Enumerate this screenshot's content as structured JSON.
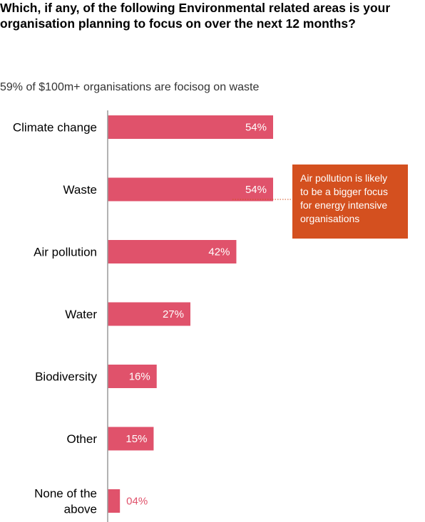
{
  "chart_data": {
    "type": "bar",
    "orientation": "horizontal",
    "title": "Which, if any, of the following Environmental related areas is your organisation planning to focus on over the next 12 months?",
    "subtitle": "59% of $100m+ organisations are focisog on waste",
    "categories": [
      "Climate change",
      "Waste",
      "Air pollution",
      "Water",
      "Biodiversity",
      "Other",
      "None of the above"
    ],
    "category_lines": [
      [
        "Climate change"
      ],
      [
        "Waste"
      ],
      [
        "Air pollution"
      ],
      [
        "Water"
      ],
      [
        "Biodiversity"
      ],
      [
        "Other"
      ],
      [
        "None of the",
        "above"
      ]
    ],
    "values": [
      54,
      54,
      42,
      27,
      16,
      15,
      4
    ],
    "value_labels": [
      "54%",
      "54%",
      "42%",
      "27%",
      "16%",
      "15%",
      "04%"
    ],
    "xlim": [
      0,
      100
    ],
    "grid": false,
    "bar_color": "#e0526b",
    "annotations": [
      {
        "text": "Air pollution is likely to be a bigger focus for energy intensive organisations",
        "lines": [
          "Air pollution is likely",
          "to be a bigger focus",
          "for energy intensive",
          "organisations"
        ],
        "points_to": "Waste",
        "background": "#d4501f",
        "text_color": "#ffffff"
      }
    ]
  }
}
